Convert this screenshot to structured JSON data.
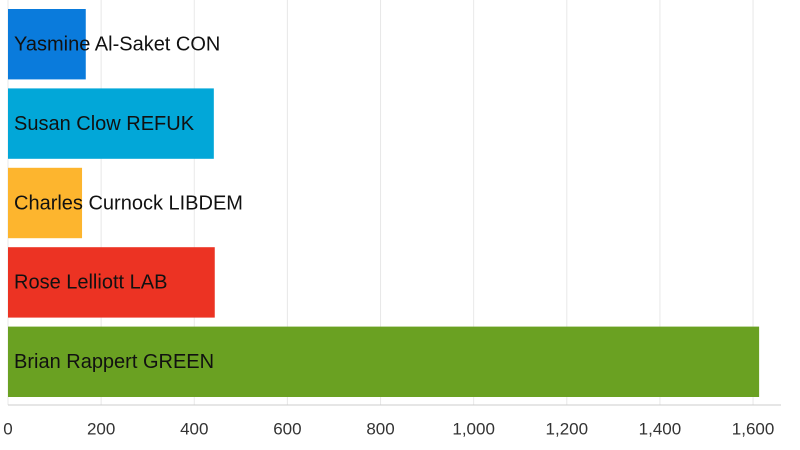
{
  "chart_data": {
    "type": "hbar",
    "categories": [
      "Yasmine Al-Saket CON",
      "Susan Clow REFUK",
      "Charles Curnock LIBDEM",
      "Rose Lelliott LAB",
      "Brian Rappert GREEN"
    ],
    "values": [
      167,
      442,
      159,
      444,
      1613
    ],
    "colors": [
      "#0a7bdc",
      "#02a7d8",
      "#fdb52e",
      "#ec3323",
      "#6aa122"
    ],
    "xlim": [
      0,
      1660
    ],
    "xticks": [
      0,
      200,
      400,
      600,
      800,
      {
        "value": 1000,
        "label": "1,000"
      },
      {
        "value": 1200,
        "label": "1,200"
      },
      {
        "value": 1400,
        "label": "1,400"
      },
      {
        "value": 1600,
        "label": "1,600"
      }
    ],
    "grid": true
  }
}
